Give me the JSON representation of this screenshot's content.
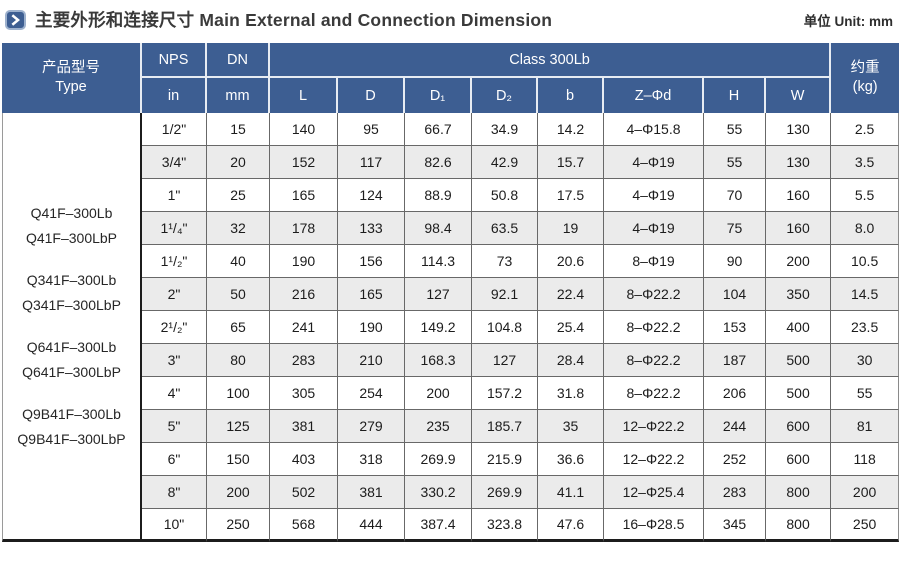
{
  "page": {
    "title_zh": "主要外形和连接尺寸",
    "title_en": "Main External and Connection Dimension",
    "unit_label": "单位 Unit: mm"
  },
  "colors": {
    "header_bg": "#3d5e92",
    "alt_row_bg": "#ebebeb",
    "icon_border": "#9db1cd"
  },
  "table": {
    "header": {
      "type_label_zh": "产品型号",
      "type_label_en": "Type",
      "nps": "NPS",
      "nps_unit": "in",
      "dn": "DN",
      "dn_unit": "mm",
      "class_label": "Class 300Lb",
      "dims": [
        "L",
        "D",
        "D₁",
        "D₂",
        "b",
        "Z–Φd",
        "H",
        "W"
      ],
      "weight_zh": "约重",
      "weight_unit": "(kg)"
    },
    "column_keys": [
      "nps",
      "dn",
      "l",
      "d",
      "d1",
      "d2",
      "b",
      "z_phi_d",
      "h",
      "w",
      "weight"
    ],
    "type_groups": [
      [
        "Q41F–300Lb",
        "Q41F–300LbP"
      ],
      [
        "Q341F–300Lb",
        "Q341F–300LbP"
      ],
      [
        "Q641F–300Lb",
        "Q641F–300LbP"
      ],
      [
        "Q9B41F–300Lb",
        "Q9B41F–300LbP"
      ]
    ],
    "rows": [
      [
        "1/2\"",
        "15",
        "140",
        "95",
        "66.7",
        "34.9",
        "14.2",
        "4–Φ15.8",
        "55",
        "130",
        "2.5"
      ],
      [
        "3/4\"",
        "20",
        "152",
        "117",
        "82.6",
        "42.9",
        "15.7",
        "4–Φ19",
        "55",
        "130",
        "3.5"
      ],
      [
        "1\"",
        "25",
        "165",
        "124",
        "88.9",
        "50.8",
        "17.5",
        "4–Φ19",
        "70",
        "160",
        "5.5"
      ],
      [
        "1¹/₄\"",
        "32",
        "178",
        "133",
        "98.4",
        "63.5",
        "19",
        "4–Φ19",
        "75",
        "160",
        "8.0"
      ],
      [
        "1¹/₂\"",
        "40",
        "190",
        "156",
        "114.3",
        "73",
        "20.6",
        "8–Φ19",
        "90",
        "200",
        "10.5"
      ],
      [
        "2\"",
        "50",
        "216",
        "165",
        "127",
        "92.1",
        "22.4",
        "8–Φ22.2",
        "104",
        "350",
        "14.5"
      ],
      [
        "2¹/₂\"",
        "65",
        "241",
        "190",
        "149.2",
        "104.8",
        "25.4",
        "8–Φ22.2",
        "153",
        "400",
        "23.5"
      ],
      [
        "3\"",
        "80",
        "283",
        "210",
        "168.3",
        "127",
        "28.4",
        "8–Φ22.2",
        "187",
        "500",
        "30"
      ],
      [
        "4\"",
        "100",
        "305",
        "254",
        "200",
        "157.2",
        "31.8",
        "8–Φ22.2",
        "206",
        "500",
        "55"
      ],
      [
        "5\"",
        "125",
        "381",
        "279",
        "235",
        "185.7",
        "35",
        "12–Φ22.2",
        "244",
        "600",
        "81"
      ],
      [
        "6\"",
        "150",
        "403",
        "318",
        "269.9",
        "215.9",
        "36.6",
        "12–Φ22.2",
        "252",
        "600",
        "118"
      ],
      [
        "8\"",
        "200",
        "502",
        "381",
        "330.2",
        "269.9",
        "41.1",
        "12–Φ25.4",
        "283",
        "800",
        "200"
      ],
      [
        "10\"",
        "250",
        "568",
        "444",
        "387.4",
        "323.8",
        "47.6",
        "16–Φ28.5",
        "345",
        "800",
        "250"
      ]
    ]
  }
}
